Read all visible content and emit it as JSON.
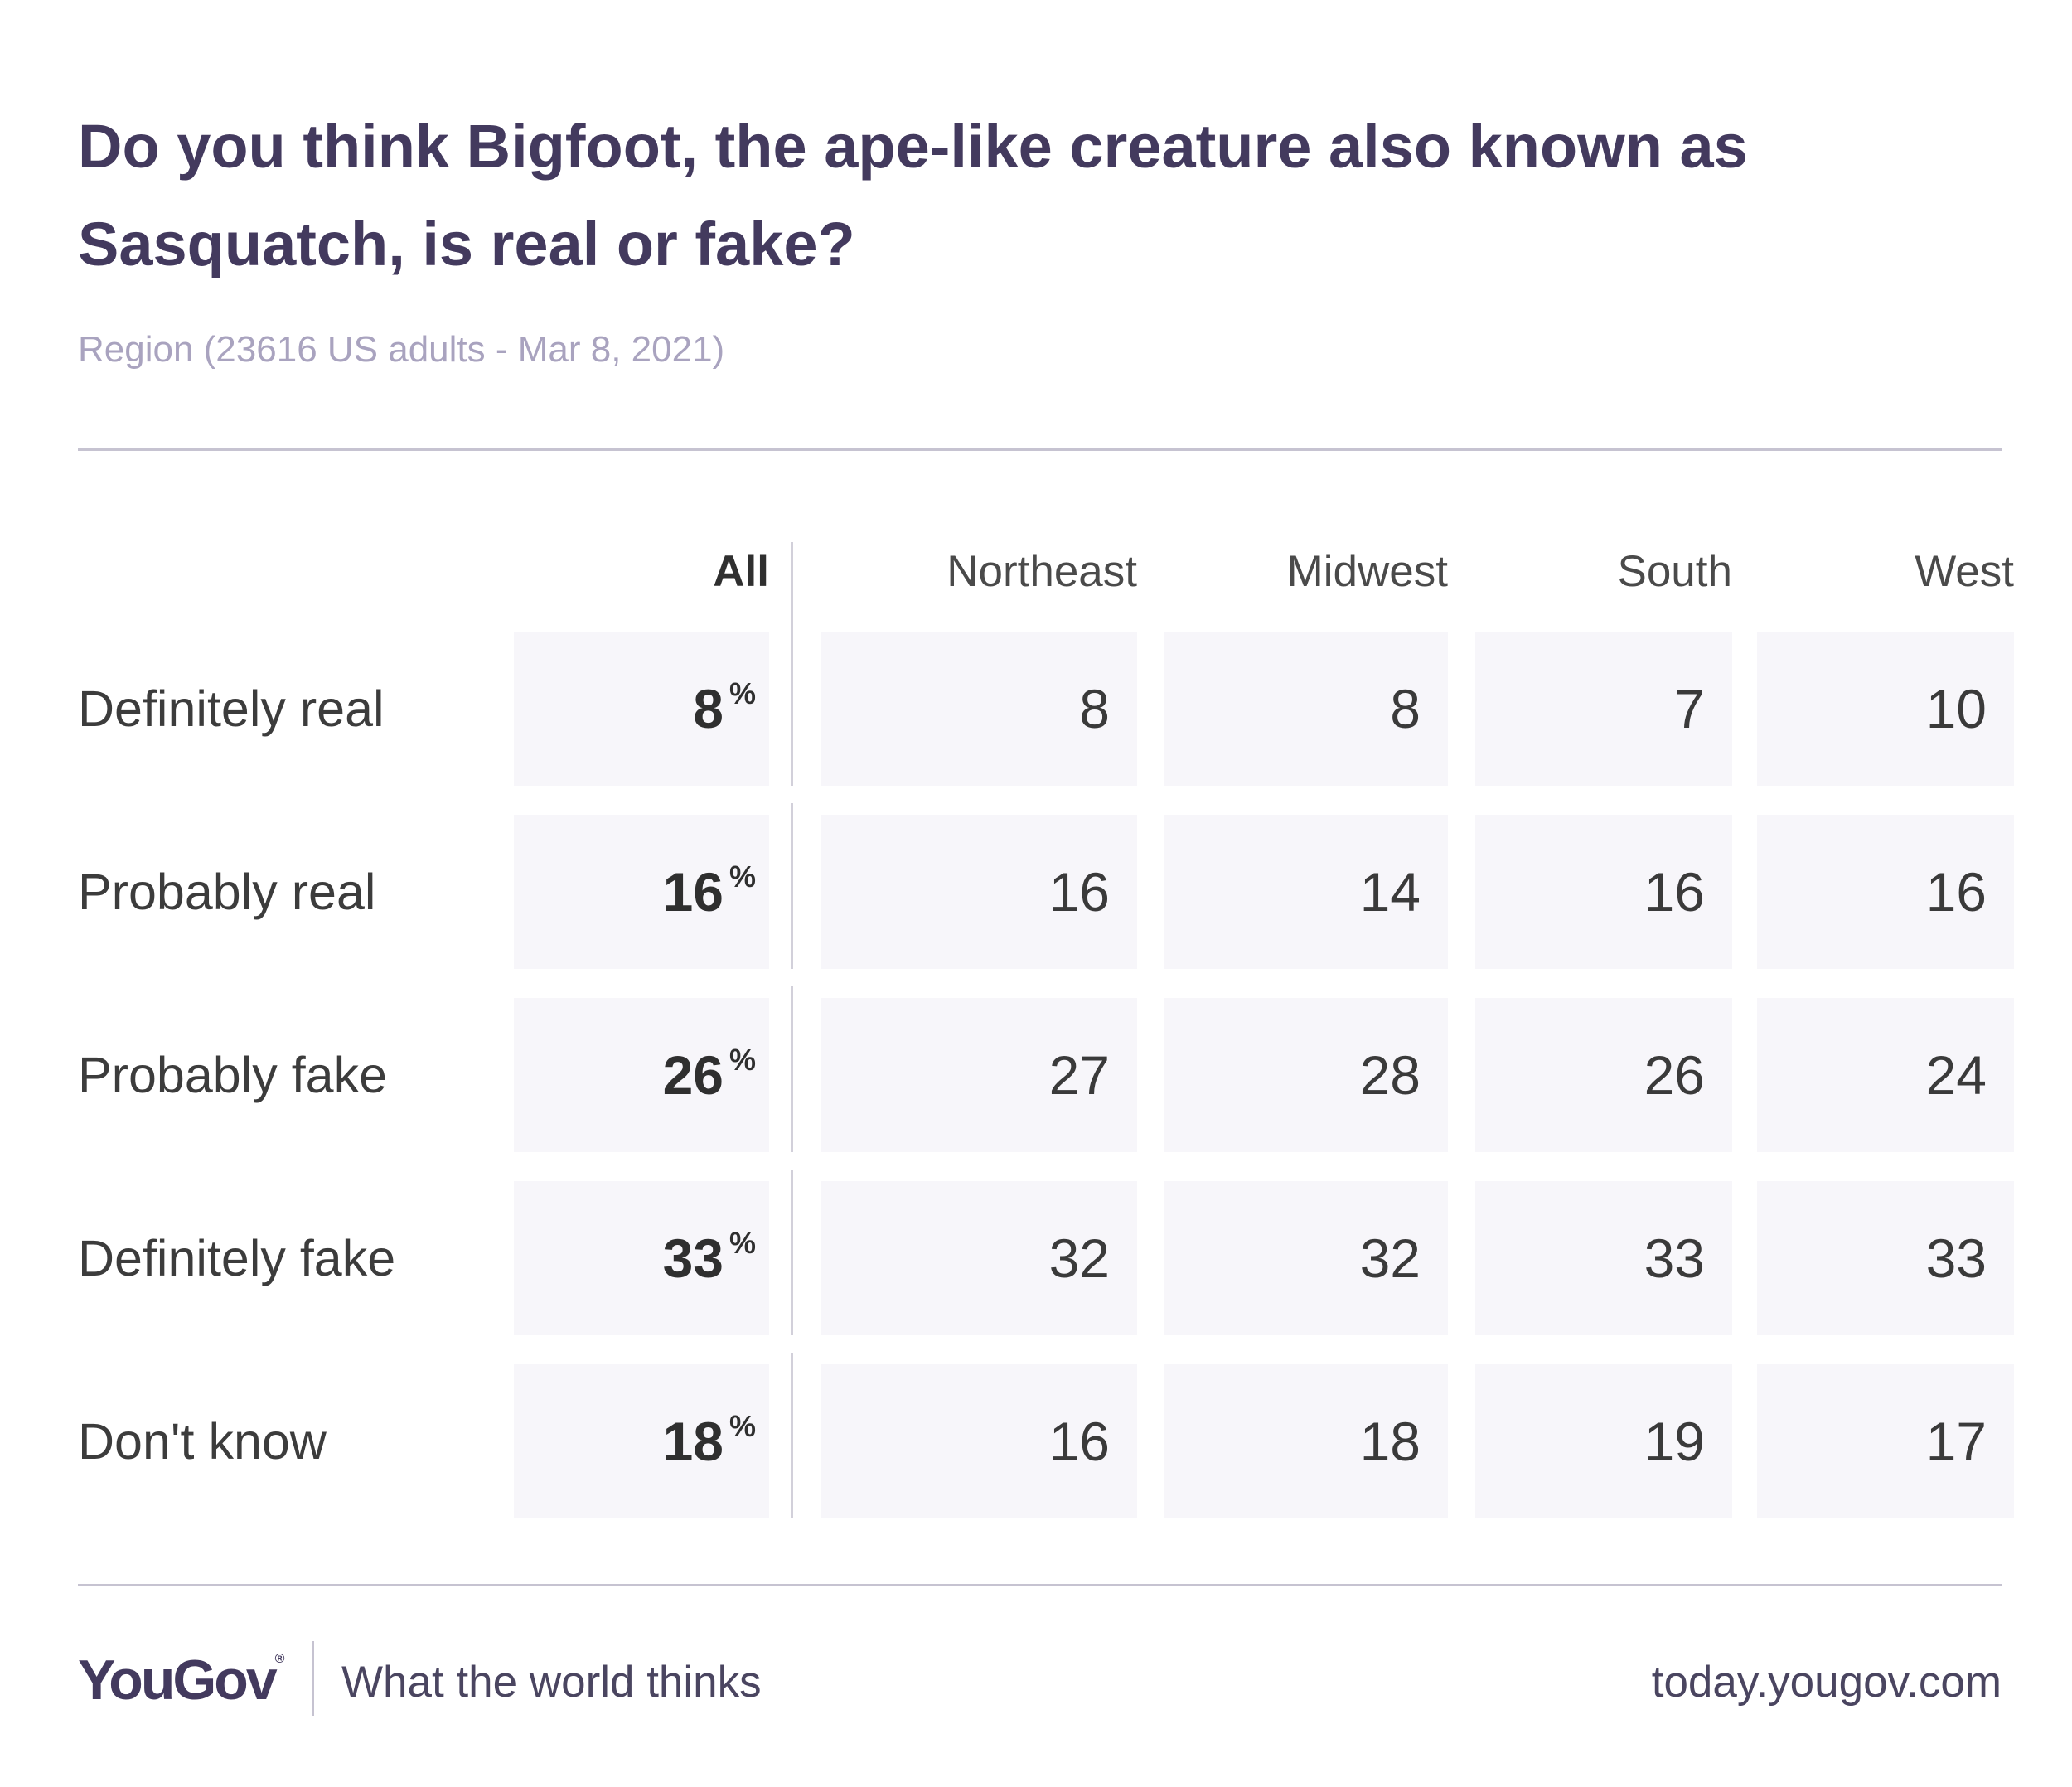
{
  "title": "Do you think Bigfoot, the ape-like creature also known as Sasquatch, is real or fake?",
  "subtitle": "Region (23616 US adults - Mar 8, 2021)",
  "columns": {
    "all": "All",
    "northeast": "Northeast",
    "midwest": "Midwest",
    "south": "South",
    "west": "West"
  },
  "percent_sign": "%",
  "rows": [
    {
      "label": "Definitely real",
      "all": "8",
      "northeast": "8",
      "midwest": "8",
      "south": "7",
      "west": "10"
    },
    {
      "label": "Probably real",
      "all": "16",
      "northeast": "16",
      "midwest": "14",
      "south": "16",
      "west": "16"
    },
    {
      "label": "Probably fake",
      "all": "26",
      "northeast": "27",
      "midwest": "28",
      "south": "26",
      "west": "24"
    },
    {
      "label": "Definitely fake",
      "all": "33",
      "northeast": "32",
      "midwest": "32",
      "south": "33",
      "west": "33"
    },
    {
      "label": "Don't know",
      "all": "18",
      "northeast": "16",
      "midwest": "18",
      "south": "19",
      "west": "17"
    }
  ],
  "chart_data": {
    "type": "table",
    "title": "Do you think Bigfoot, the ape-like creature also known as Sasquatch, is real or fake?",
    "subtitle": "Region (23616 US adults - Mar 8, 2021)",
    "unit": "%",
    "categories": [
      "Definitely real",
      "Probably real",
      "Probably fake",
      "Definitely fake",
      "Don't know"
    ],
    "series": [
      {
        "name": "All",
        "values": [
          8,
          16,
          26,
          33,
          18
        ]
      },
      {
        "name": "Northeast",
        "values": [
          8,
          16,
          27,
          32,
          16
        ]
      },
      {
        "name": "Midwest",
        "values": [
          8,
          14,
          28,
          32,
          18
        ]
      },
      {
        "name": "South",
        "values": [
          7,
          16,
          26,
          33,
          19
        ]
      },
      {
        "name": "West",
        "values": [
          10,
          16,
          24,
          33,
          17
        ]
      }
    ]
  },
  "footer": {
    "logo": "YouGov",
    "logo_mark": "®",
    "tagline": "What the world thinks",
    "site": "today.yougov.com"
  }
}
